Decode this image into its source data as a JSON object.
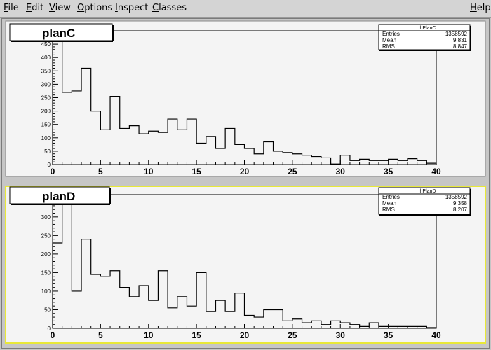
{
  "menu": {
    "file": {
      "first": "F",
      "rest": "ile"
    },
    "edit": {
      "first": "E",
      "rest": "dit"
    },
    "view": {
      "first": "V",
      "rest": "iew"
    },
    "options": {
      "first": "O",
      "rest": "ptions"
    },
    "inspect": {
      "first": "I",
      "rest": "nspect"
    },
    "classes": {
      "first": "C",
      "rest": "lasses"
    },
    "help": {
      "first": "H",
      "rest": "elp"
    }
  },
  "colors": {
    "pad_background": "#f4f4f4",
    "selected_pad_border": "#e8e838",
    "histogram_line": "#000000"
  },
  "pads": [
    {
      "title": "planC",
      "stats": {
        "name": "hPlanC",
        "rows": [
          {
            "label": "Entries",
            "value": "1358592"
          },
          {
            "label": "Mean",
            "value": "9.831"
          },
          {
            "label": "RMS",
            "value": "8.847"
          }
        ]
      },
      "chart_data": {
        "type": "histogram",
        "x_bin_edges_start": 0,
        "x_bin_width": 1,
        "xlim": [
          0,
          40
        ],
        "ylim": [
          0,
          500
        ],
        "x_ticks": [
          "0",
          "5",
          "10",
          "15",
          "20",
          "25",
          "30",
          "35",
          "40"
        ],
        "y_ticks": [
          "0",
          "50",
          "100",
          "150",
          "200",
          "250",
          "300",
          "350",
          "400",
          "450"
        ],
        "values": [
          470,
          270,
          275,
          360,
          200,
          130,
          255,
          135,
          145,
          115,
          125,
          120,
          170,
          130,
          170,
          80,
          105,
          60,
          135,
          75,
          60,
          40,
          85,
          50,
          45,
          40,
          35,
          30,
          25,
          2,
          35,
          15,
          20,
          15,
          15,
          20,
          15,
          22,
          15,
          5
        ]
      }
    },
    {
      "title": "planD",
      "stats": {
        "name": "hPlanD",
        "rows": [
          {
            "label": "Entries",
            "value": "1358592"
          },
          {
            "label": "Mean",
            "value": "9.358"
          },
          {
            "label": "RMS",
            "value": "8.207"
          }
        ]
      },
      "chart_data": {
        "type": "histogram",
        "x_bin_edges_start": 0,
        "x_bin_width": 1,
        "xlim": [
          0,
          40
        ],
        "ylim": [
          0,
          360
        ],
        "x_ticks": [
          "0",
          "5",
          "10",
          "15",
          "20",
          "25",
          "30",
          "35",
          "40"
        ],
        "y_ticks": [
          "0",
          "50",
          "100",
          "150",
          "200",
          "250",
          "300",
          "350"
        ],
        "values": [
          230,
          340,
          100,
          240,
          145,
          140,
          155,
          110,
          85,
          115,
          75,
          155,
          55,
          85,
          60,
          150,
          45,
          75,
          45,
          95,
          35,
          30,
          50,
          50,
          20,
          25,
          15,
          20,
          10,
          20,
          15,
          10,
          5,
          15,
          5,
          5,
          5,
          5,
          5,
          2
        ]
      }
    }
  ]
}
